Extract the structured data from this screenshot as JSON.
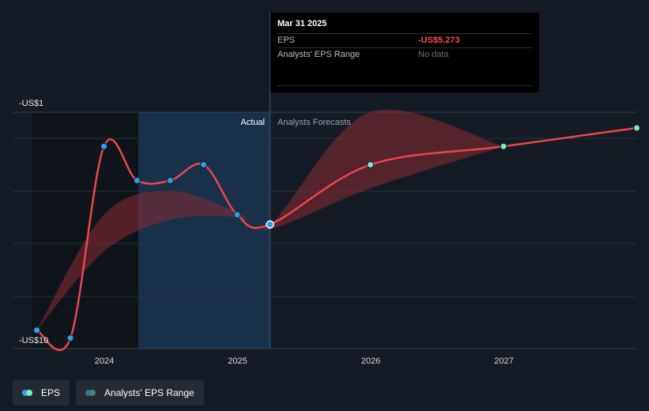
{
  "tooltip": {
    "date": "Mar 31 2025",
    "rows": [
      {
        "label": "EPS",
        "value": "-US$5.273"
      },
      {
        "label": "Analysts' EPS Range",
        "value": "No data"
      }
    ]
  },
  "legend": {
    "eps_label": "EPS",
    "range_label": "Analysts' EPS Range"
  },
  "colors": {
    "line": "#e8474f",
    "actual_point": "#2f9fe8",
    "forecast_point": "#7ee8c0",
    "range_fill": "#8b2a31",
    "highlight": "#1a3a55"
  },
  "chart_data": {
    "type": "line",
    "title": "",
    "xlabel": "",
    "ylabel": "",
    "y_tick_labels": [
      "-US$1",
      "-US$10"
    ],
    "ylim": [
      -10,
      -1
    ],
    "x_ticks": [
      2024,
      2025,
      2026,
      2027
    ],
    "region_labels": {
      "actual": "Actual",
      "forecast": "Analysts Forecasts"
    },
    "actual_boundary": "2025-03-31",
    "series": [
      {
        "name": "EPS",
        "points": [
          {
            "x": "2023-06-30",
            "y": -9.3
          },
          {
            "x": "2023-09-30",
            "y": -9.6
          },
          {
            "x": "2023-12-31",
            "y": -2.3
          },
          {
            "x": "2024-03-31",
            "y": -3.6
          },
          {
            "x": "2024-06-30",
            "y": -3.6
          },
          {
            "x": "2024-09-30",
            "y": -3.0
          },
          {
            "x": "2024-12-31",
            "y": -4.9
          },
          {
            "x": "2025-03-31",
            "y": -5.273
          },
          {
            "x": "2025-12-31",
            "y": -3.0
          },
          {
            "x": "2026-12-31",
            "y": -2.3
          },
          {
            "x": "2027-12-31",
            "y": -1.6
          }
        ]
      }
    ],
    "analyst_range": [
      {
        "x": "2023-06-30",
        "low": -9.3,
        "high": -9.3
      },
      {
        "x": "2023-12-31",
        "low": -6.3,
        "high": -4.9
      },
      {
        "x": "2024-06-30",
        "low": -5.1,
        "high": -4.0
      },
      {
        "x": "2024-12-31",
        "low": -5.0,
        "high": -4.8
      },
      {
        "x": "2025-03-31",
        "low": -5.45,
        "high": -5.273
      },
      {
        "x": "2025-12-31",
        "low": -3.9,
        "high": -1.0
      },
      {
        "x": "2026-12-31",
        "low": -2.3,
        "high": -2.3
      }
    ]
  }
}
